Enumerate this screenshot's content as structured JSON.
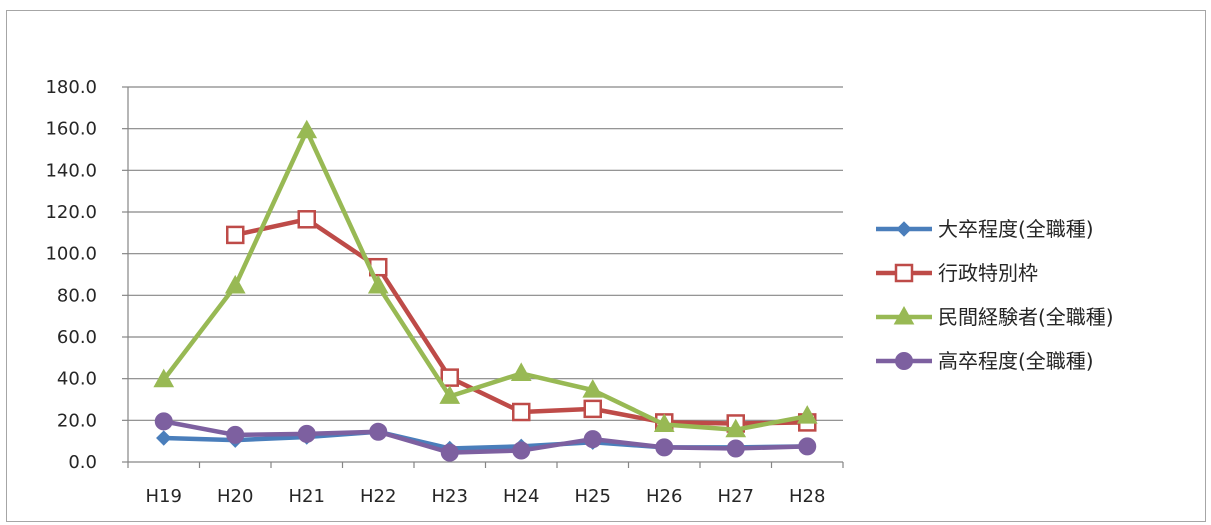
{
  "chart_data": {
    "type": "line",
    "title": "",
    "xlabel": "",
    "ylabel": "",
    "ylim": [
      0,
      180
    ],
    "yticks": [
      0,
      20,
      40,
      60,
      80,
      100,
      120,
      140,
      160,
      180
    ],
    "ytick_labels": [
      "0.0",
      "20.0",
      "40.0",
      "60.0",
      "80.0",
      "100.0",
      "120.0",
      "140.0",
      "160.0",
      "180.0"
    ],
    "grid": true,
    "legend_position": "right",
    "categories": [
      "H19",
      "H20",
      "H21",
      "H22",
      "H23",
      "H24",
      "H25",
      "H26",
      "H27",
      "H28"
    ],
    "series": [
      {
        "name": "大卒程度(全職種)",
        "color": "#4a7ebb",
        "marker": "diamond",
        "values": [
          11.5,
          10.5,
          12.0,
          14.5,
          6.5,
          7.5,
          9.5,
          7.0,
          7.0,
          7.5
        ]
      },
      {
        "name": "行政特別枠",
        "color": "#be4b48",
        "marker": "square-open",
        "values": [
          null,
          109.0,
          116.5,
          93.5,
          40.5,
          24.0,
          25.5,
          19.0,
          18.5,
          19.0
        ]
      },
      {
        "name": "民間経験者(全職種)",
        "color": "#98b954",
        "marker": "triangle",
        "values": [
          39.5,
          84.5,
          159.0,
          84.5,
          31.5,
          42.5,
          34.5,
          18.0,
          15.5,
          22.0
        ]
      },
      {
        "name": "高卒程度(全職種)",
        "color": "#7d60a0",
        "marker": "circle",
        "values": [
          19.5,
          13.0,
          13.5,
          14.5,
          4.5,
          5.5,
          11.0,
          7.0,
          6.5,
          7.5
        ]
      }
    ]
  }
}
